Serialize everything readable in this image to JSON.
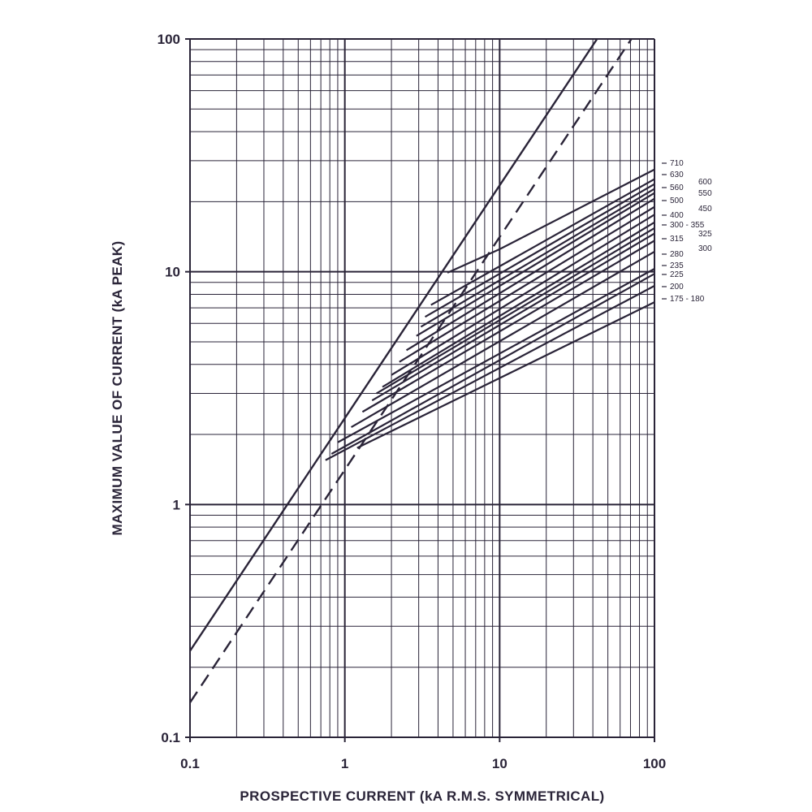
{
  "chart_data": {
    "type": "line",
    "xscale": "log",
    "yscale": "log",
    "xlim": [
      0.1,
      100
    ],
    "ylim": [
      0.1,
      100
    ],
    "grid": true,
    "xlabel": "PROSPECTIVE CURRENT (kA  R.M.S.  SYMMETRICAL)",
    "ylabel": "MAXIMUM VALUE OF CURRENT (kA PEAK)",
    "x_tick_labels": [
      {
        "value": 0.1,
        "label": "0.1"
      },
      {
        "value": 1,
        "label": "1"
      },
      {
        "value": 10,
        "label": "10"
      },
      {
        "value": 100,
        "label": "100"
      }
    ],
    "y_tick_labels": [
      {
        "value": 0.1,
        "label": "0.1"
      },
      {
        "value": 1,
        "label": "1"
      },
      {
        "value": 10,
        "label": "10"
      },
      {
        "value": 100,
        "label": "100"
      }
    ],
    "reference_lines": [
      {
        "style": "solid",
        "points": [
          [
            0.1,
            0.235
          ],
          [
            100,
            235
          ]
        ]
      },
      {
        "style": "dashed",
        "points": [
          [
            0.1,
            0.141
          ],
          [
            100,
            141
          ]
        ]
      }
    ],
    "series": [
      {
        "name": "175 - 180",
        "points": [
          [
            1.2,
            1.75
          ],
          [
            100,
            7.4
          ]
        ]
      },
      {
        "name": "200",
        "points": [
          [
            0.75,
            1.55
          ],
          [
            100,
            8.7
          ]
        ]
      },
      {
        "name": "225",
        "points": [
          [
            0.82,
            1.65
          ],
          [
            100,
            9.8
          ]
        ]
      },
      {
        "name": "235",
        "points": [
          [
            0.9,
            1.85
          ],
          [
            100,
            10.3
          ]
        ]
      },
      {
        "name": "280",
        "points": [
          [
            1.1,
            2.15
          ],
          [
            100,
            12.2
          ]
        ]
      },
      {
        "name": "300",
        "points": [
          [
            1.3,
            2.5
          ],
          [
            100,
            13.6
          ]
        ]
      },
      {
        "name": "315",
        "points": [
          [
            1.5,
            2.8
          ],
          [
            100,
            14.6
          ]
        ]
      },
      {
        "name": "325",
        "points": [
          [
            1.6,
            3.0
          ],
          [
            100,
            15.4
          ]
        ]
      },
      {
        "name": "300 - 355",
        "points": [
          [
            1.75,
            3.2
          ],
          [
            100,
            16.3
          ]
        ]
      },
      {
        "name": "400",
        "points": [
          [
            2.0,
            3.6
          ],
          [
            100,
            17.6
          ]
        ]
      },
      {
        "name": "450",
        "points": [
          [
            2.25,
            4.1
          ],
          [
            100,
            19.0
          ]
        ]
      },
      {
        "name": "500",
        "points": [
          [
            2.5,
            4.6
          ],
          [
            100,
            20.6
          ]
        ]
      },
      {
        "name": "550",
        "points": [
          [
            2.9,
            5.3
          ],
          [
            100,
            21.8
          ]
        ]
      },
      {
        "name": "560",
        "points": [
          [
            3.1,
            5.8
          ],
          [
            100,
            22.7
          ]
        ]
      },
      {
        "name": "600",
        "points": [
          [
            3.3,
            6.4
          ],
          [
            100,
            23.8
          ]
        ]
      },
      {
        "name": "630",
        "points": [
          [
            3.6,
            7.2
          ],
          [
            100,
            25.0
          ]
        ]
      },
      {
        "name": "710",
        "points": [
          [
            4.6,
            9.9
          ],
          [
            10,
            12.5
          ],
          [
            100,
            27.5
          ]
        ]
      }
    ]
  }
}
